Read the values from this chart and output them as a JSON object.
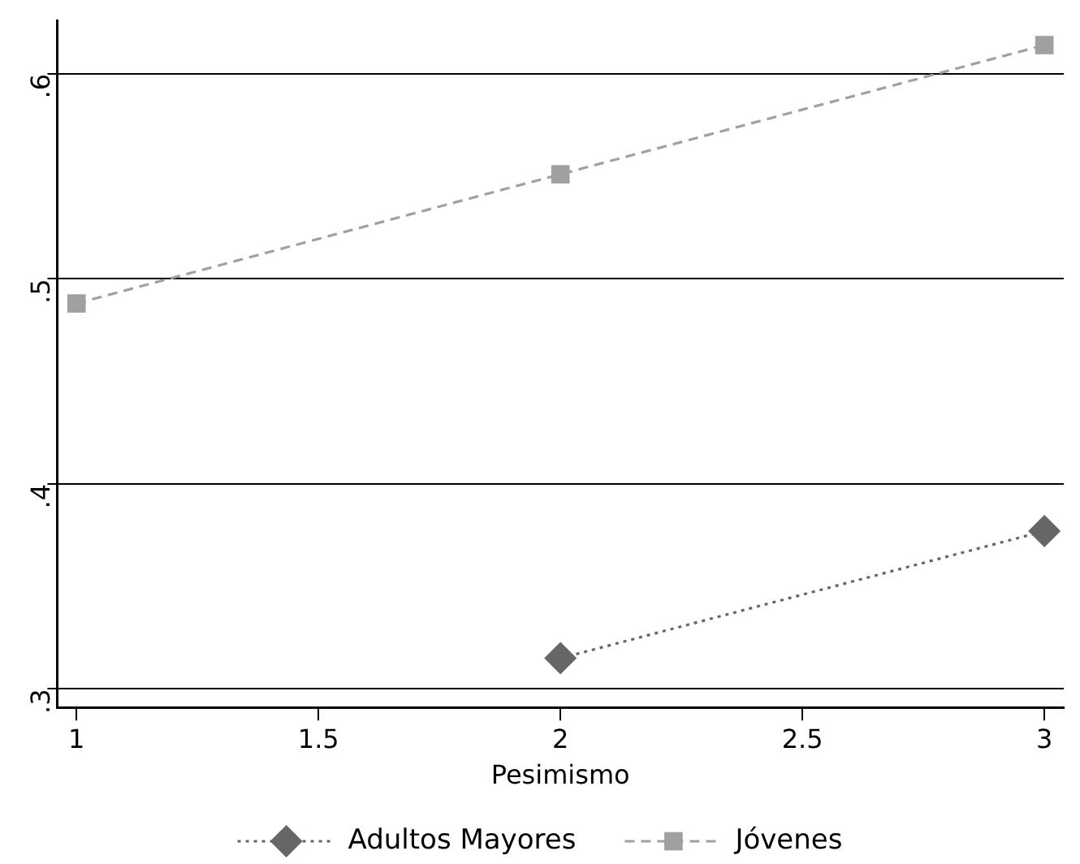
{
  "chart_data": {
    "type": "line",
    "xlabel": "Pesimismo",
    "x": [
      1,
      2,
      3
    ],
    "series": [
      {
        "name": "Adultos Mayores",
        "color": "#666666",
        "values": [
          null,
          0.315,
          0.377
        ],
        "marker": "diamond",
        "line_style": "dotted"
      },
      {
        "name": "Jóvenes",
        "color": "#a0a0a0",
        "values": [
          0.488,
          0.551,
          0.614
        ],
        "marker": "square",
        "line_style": "dashed"
      }
    ],
    "xlim": [
      0.96,
      3.04
    ],
    "xticks": [
      1,
      1.5,
      2,
      2.5,
      3
    ],
    "ylim": [
      0.291,
      0.626
    ],
    "yticks": [
      {
        "value": 0.3,
        "label": ".3"
      },
      {
        "value": 0.4,
        "label": ".4"
      },
      {
        "value": 0.5,
        "label": ".5"
      },
      {
        "value": 0.6,
        "label": ".6"
      }
    ],
    "grid": "y",
    "legend": "bottom"
  }
}
